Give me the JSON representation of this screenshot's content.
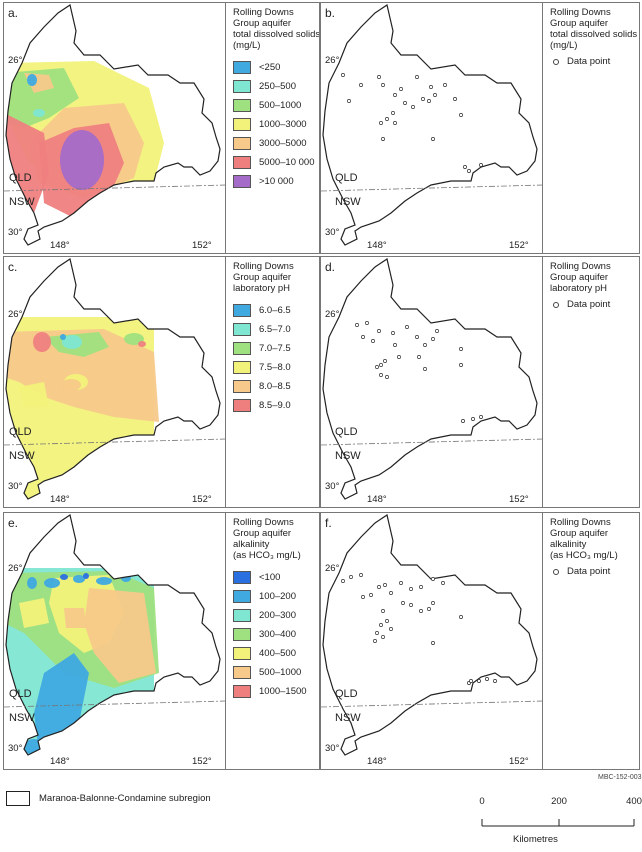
{
  "panels": [
    {
      "letter": "a.",
      "type": "map",
      "legend_title": [
        "Rolling Downs",
        "Group aquifer",
        "total dissolved solids",
        "(mg/L)"
      ],
      "classes": [
        {
          "label": "<250",
          "color": "#3fa9e0"
        },
        {
          "label": "250–500",
          "color": "#7fe6d2"
        },
        {
          "label": "500–1000",
          "color": "#9fe080"
        },
        {
          "label": "1000–3000",
          "color": "#f2f27a"
        },
        {
          "label": "3000–5000",
          "color": "#f7c98a"
        },
        {
          "label": "5000–10 000",
          "color": "#ef7f7f"
        },
        {
          "label": ">10 000",
          "color": "#a46cc8"
        }
      ]
    },
    {
      "letter": "b.",
      "type": "points",
      "legend_title": [
        "Rolling Downs",
        "Group aquifer",
        "total dissolved solids",
        "(mg/L)"
      ],
      "point_label": "Data point"
    },
    {
      "letter": "c.",
      "type": "map",
      "legend_title": [
        "Rolling Downs",
        "Group aquifer",
        "laboratory pH"
      ],
      "classes": [
        {
          "label": "6.0–6.5",
          "color": "#3fa9e0"
        },
        {
          "label": "6.5–7.0",
          "color": "#7fe6d2"
        },
        {
          "label": "7.0–7.5",
          "color": "#9fe080"
        },
        {
          "label": "7.5–8.0",
          "color": "#f2f27a"
        },
        {
          "label": "8.0–8.5",
          "color": "#f7c98a"
        },
        {
          "label": "8.5–9.0",
          "color": "#ef7f7f"
        }
      ]
    },
    {
      "letter": "d.",
      "type": "points",
      "legend_title": [
        "Rolling Downs",
        "Group aquifer",
        "laboratory pH"
      ],
      "point_label": "Data point"
    },
    {
      "letter": "e.",
      "type": "map",
      "legend_title": [
        "Rolling Downs",
        "Group aquifer",
        "alkalinity",
        "(as HCO₃ mg/L)"
      ],
      "classes": [
        {
          "label": "<100",
          "color": "#2a6fe0"
        },
        {
          "label": "100–200",
          "color": "#3fa9e0"
        },
        {
          "label": "200–300",
          "color": "#7fe6d2"
        },
        {
          "label": "300–400",
          "color": "#9fe080"
        },
        {
          "label": "400–500",
          "color": "#f2f27a"
        },
        {
          "label": "500–1000",
          "color": "#f7c98a"
        },
        {
          "label": "1000–1500",
          "color": "#ef7f7f"
        }
      ]
    },
    {
      "letter": "f.",
      "type": "points",
      "legend_title": [
        "Rolling Downs",
        "Group aquifer",
        "alkalinity",
        "(as HCO₃ mg/L)"
      ],
      "point_label": "Data point"
    }
  ],
  "map_labels": {
    "lat_north": "26°",
    "lat_south": "30°",
    "lon_west": "148°",
    "lon_east": "152°",
    "state_north": "QLD",
    "state_south": "NSW"
  },
  "figure_code": "MBC-152-003",
  "boundary_legend": "Maranoa-Balonne-Condamine subregion",
  "scale_bar": {
    "ticks": [
      "0",
      "200",
      "400"
    ],
    "unit": "Kilometres"
  }
}
